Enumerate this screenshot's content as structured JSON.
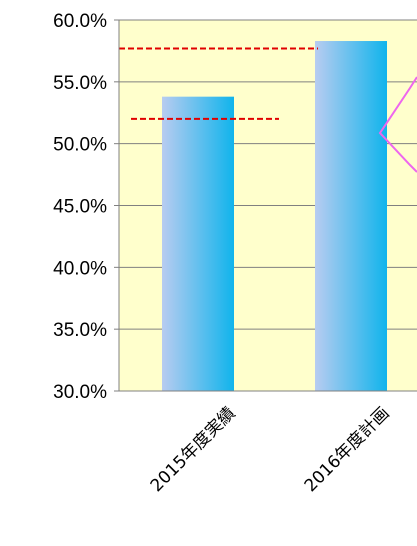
{
  "chart_data": {
    "type": "bar",
    "categories": [
      "2015年度実績",
      "2016年度計画"
    ],
    "values": [
      53.8,
      58.3
    ],
    "ylim": [
      30,
      60
    ],
    "yticks": [
      "30.0%",
      "35.0%",
      "40.0%",
      "45.0%",
      "50.0%",
      "55.0%",
      "60.0%"
    ],
    "reference_lines": [
      57.7,
      52.0
    ],
    "grid": true,
    "colors": {
      "plot_background": "#FFFFCC",
      "bar_light": "#B8CCF0",
      "bar_dark": "#10B4EC",
      "gridline": "#808080",
      "reference_line": "#E00000",
      "callout": "#EE66EE"
    }
  }
}
